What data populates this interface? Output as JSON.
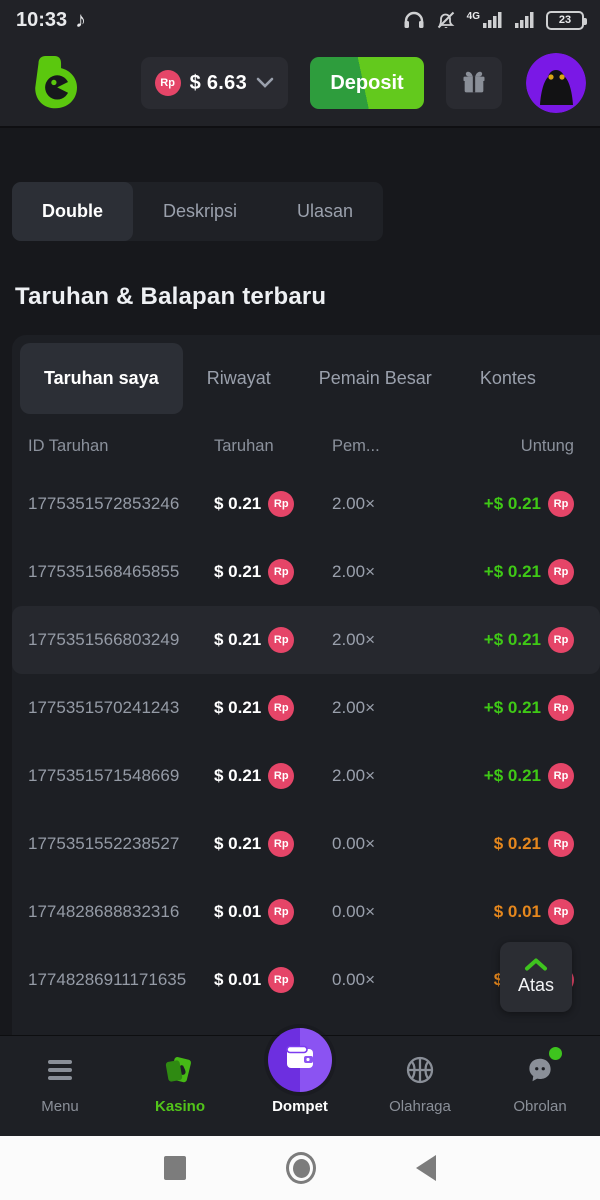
{
  "status_bar": {
    "time": "10:33",
    "network_label": "4G",
    "battery_percent": "23"
  },
  "header": {
    "currency_badge": "Rp",
    "balance_amount": "$ 6.63",
    "deposit_label": "Deposit"
  },
  "page_tabs": [
    {
      "label": "Double",
      "active": true
    },
    {
      "label": "Deskripsi",
      "active": false
    },
    {
      "label": "Ulasan",
      "active": false
    }
  ],
  "section_title": "Taruhan & Balapan terbaru",
  "bets_table": {
    "tabs": [
      {
        "label": "Taruhan saya",
        "active": true
      },
      {
        "label": "Riwayat",
        "active": false
      },
      {
        "label": "Pemain Besar",
        "active": false
      },
      {
        "label": "Kontes",
        "active": false
      }
    ],
    "columns": [
      "ID Taruhan",
      "Taruhan",
      "Pem...",
      "Untung"
    ],
    "currency_badge": "Rp",
    "rows": [
      {
        "id": "1775351572853246",
        "bet": "$ 0.21",
        "multiplier": "2.00×",
        "profit": "+$ 0.21",
        "profit_color": "green",
        "highlighted": false
      },
      {
        "id": "1775351568465855",
        "bet": "$ 0.21",
        "multiplier": "2.00×",
        "profit": "+$ 0.21",
        "profit_color": "green",
        "highlighted": false
      },
      {
        "id": "1775351566803249",
        "bet": "$ 0.21",
        "multiplier": "2.00×",
        "profit": "+$ 0.21",
        "profit_color": "green",
        "highlighted": true
      },
      {
        "id": "1775351570241243",
        "bet": "$ 0.21",
        "multiplier": "2.00×",
        "profit": "+$ 0.21",
        "profit_color": "green",
        "highlighted": false
      },
      {
        "id": "1775351571548669",
        "bet": "$ 0.21",
        "multiplier": "2.00×",
        "profit": "+$ 0.21",
        "profit_color": "green",
        "highlighted": false
      },
      {
        "id": "1775351552238527",
        "bet": "$ 0.21",
        "multiplier": "0.00×",
        "profit": "$ 0.21",
        "profit_color": "orange",
        "highlighted": false
      },
      {
        "id": "1774828688832316",
        "bet": "$ 0.01",
        "multiplier": "0.00×",
        "profit": "$ 0.01",
        "profit_color": "orange",
        "highlighted": false
      },
      {
        "id": "17748286911171635",
        "bet": "$ 0.01",
        "multiplier": "0.00×",
        "profit": "$ 0.01",
        "profit_color": "orange",
        "highlighted": false
      }
    ]
  },
  "scroll_top": {
    "label": "Atas"
  },
  "bottom_nav": [
    {
      "label": "Menu",
      "icon": "menu-icon",
      "style": "default"
    },
    {
      "label": "Kasino",
      "icon": "casino-icon",
      "style": "green"
    },
    {
      "label": "Dompet",
      "icon": "wallet-icon",
      "style": "raised"
    },
    {
      "label": "Olahraga",
      "icon": "sports-icon",
      "style": "default"
    },
    {
      "label": "Obrolan",
      "icon": "chat-icon",
      "style": "default",
      "badge": true
    }
  ],
  "colors": {
    "coin_red": "#e54568",
    "profit_green": "#3fc916",
    "pending_orange": "#e5871d",
    "accent_green": "#52c41a",
    "wallet_purple": "#7c3bf0"
  }
}
